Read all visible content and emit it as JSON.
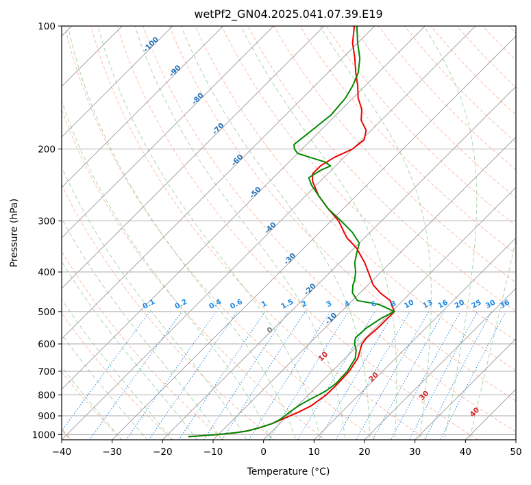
{
  "chart_data": {
    "type": "skew-t",
    "title": "wetPf2_GN04.2025.041.07.39.E19",
    "xlabel": "Temperature (°C)",
    "ylabel": "Pressure (hPa)",
    "xlim": [
      -40,
      50
    ],
    "ylim": [
      1030,
      100
    ],
    "skew": 45,
    "x_ticks": [
      -40,
      -30,
      -20,
      -10,
      0,
      10,
      20,
      30,
      40,
      50
    ],
    "x_tick_labels": [
      "−40",
      "−30",
      "−20",
      "−10",
      "0",
      "10",
      "20",
      "30",
      "40",
      "50"
    ],
    "y_ticks": [
      100,
      200,
      300,
      400,
      500,
      600,
      700,
      800,
      900,
      1000
    ],
    "y_tick_labels": [
      "100",
      "200",
      "300",
      "400",
      "500",
      "600",
      "700",
      "800",
      "900",
      "1000"
    ],
    "grid": true,
    "colors": {
      "temperature": "#ee0000",
      "dewpoint": "#008800",
      "dry_adiabats": "#fa9a7a",
      "moist_adiabats": "#7cc07c",
      "mixing_ratio": "#1e88e5",
      "isotherm": "#999999",
      "isotherm_label": "#2471b5",
      "mixing_label": "#1e88e5",
      "theta_label": "#d62728",
      "zero_label": "#777777",
      "tan_curve": "#d4b896"
    },
    "series": [
      {
        "key": "temperature",
        "points": [
          [
            1012,
            -15.5
          ],
          [
            1010,
            -14.5
          ],
          [
            1000,
            -10.0
          ],
          [
            990,
            -7.0
          ],
          [
            980,
            -5.0
          ],
          [
            960,
            -3.0
          ],
          [
            940,
            -1.5
          ],
          [
            920,
            -0.5
          ],
          [
            900,
            0.5
          ],
          [
            880,
            1.5
          ],
          [
            850,
            2.7
          ],
          [
            800,
            3.5
          ],
          [
            750,
            3.6
          ],
          [
            700,
            3.4
          ],
          [
            650,
            2.5
          ],
          [
            600,
            0.5
          ],
          [
            580,
            0.2
          ],
          [
            550,
            0.5
          ],
          [
            500,
            0.5
          ],
          [
            470,
            -2.5
          ],
          [
            450,
            -6.0
          ],
          [
            430,
            -9.0
          ],
          [
            400,
            -12.5
          ],
          [
            380,
            -15.0
          ],
          [
            350,
            -19.5
          ],
          [
            330,
            -23.5
          ],
          [
            300,
            -28.5
          ],
          [
            280,
            -33.0
          ],
          [
            260,
            -37.5
          ],
          [
            240,
            -41.5
          ],
          [
            230,
            -43.0
          ],
          [
            220,
            -43.0
          ],
          [
            210,
            -42.0
          ],
          [
            200,
            -40.0
          ],
          [
            190,
            -39.5
          ],
          [
            180,
            -41.0
          ],
          [
            170,
            -44.0
          ],
          [
            160,
            -46.0
          ],
          [
            150,
            -49.0
          ],
          [
            140,
            -51.5
          ],
          [
            130,
            -54.5
          ],
          [
            120,
            -57.5
          ],
          [
            110,
            -61.0
          ],
          [
            100,
            -64.0
          ]
        ]
      },
      {
        "key": "dewpoint",
        "points": [
          [
            1012,
            -15.5
          ],
          [
            1010,
            -14.5
          ],
          [
            1000,
            -10.0
          ],
          [
            990,
            -7.0
          ],
          [
            980,
            -5.0
          ],
          [
            960,
            -3.0
          ],
          [
            940,
            -1.5
          ],
          [
            920,
            -0.8
          ],
          [
            900,
            -0.5
          ],
          [
            880,
            -0.3
          ],
          [
            850,
            0.2
          ],
          [
            820,
            1.2
          ],
          [
            800,
            2.0
          ],
          [
            780,
            2.7
          ],
          [
            750,
            3.2
          ],
          [
            700,
            3.0
          ],
          [
            650,
            2.0
          ],
          [
            620,
            0.5
          ],
          [
            600,
            -1.0
          ],
          [
            580,
            -2.0
          ],
          [
            550,
            -1.8
          ],
          [
            520,
            -0.8
          ],
          [
            500,
            0.5
          ],
          [
            480,
            -4.0
          ],
          [
            470,
            -9.0
          ],
          [
            450,
            -11.5
          ],
          [
            430,
            -13.0
          ],
          [
            420,
            -13.5
          ],
          [
            400,
            -15.0
          ],
          [
            380,
            -17.0
          ],
          [
            360,
            -18.5
          ],
          [
            340,
            -20.0
          ],
          [
            320,
            -23.5
          ],
          [
            300,
            -28.0
          ],
          [
            280,
            -33.0
          ],
          [
            260,
            -37.5
          ],
          [
            245,
            -41.0
          ],
          [
            235,
            -43.0
          ],
          [
            225,
            -42.0
          ],
          [
            220,
            -41.0
          ],
          [
            215,
            -43.0
          ],
          [
            210,
            -46.5
          ],
          [
            205,
            -50.0
          ],
          [
            200,
            -51.5
          ],
          [
            195,
            -52.5
          ],
          [
            185,
            -52.0
          ],
          [
            175,
            -51.5
          ],
          [
            165,
            -51.0
          ],
          [
            150,
            -51.5
          ],
          [
            140,
            -52.5
          ],
          [
            130,
            -54.0
          ],
          [
            120,
            -56.5
          ],
          [
            110,
            -60.0
          ],
          [
            100,
            -63.5
          ]
        ]
      }
    ],
    "isotherm_labels": [
      {
        "t": -100,
        "text": "-100"
      },
      {
        "t": -90,
        "text": "-90"
      },
      {
        "t": -80,
        "text": "-80"
      },
      {
        "t": -70,
        "text": "-70"
      },
      {
        "t": -60,
        "text": "-60"
      },
      {
        "t": -50,
        "text": "-50"
      },
      {
        "t": -40,
        "text": "-40"
      },
      {
        "t": -30,
        "text": "-30"
      },
      {
        "t": -20,
        "text": "-20"
      },
      {
        "t": -10,
        "text": "-10"
      }
    ],
    "mixing_ratio_labels": [
      "0.1",
      "0.2",
      "0.4",
      "0.6",
      "1",
      "1.5",
      "2",
      "3",
      "4",
      "6",
      "8",
      "10",
      "13",
      "16",
      "20",
      "25",
      "30",
      "36"
    ],
    "theta_labels": [
      {
        "t": 0,
        "text": "0"
      },
      {
        "t": 10,
        "text": "10"
      },
      {
        "t": 20,
        "text": "20"
      },
      {
        "t": 30,
        "text": "30"
      },
      {
        "t": 40,
        "text": "40"
      }
    ]
  }
}
